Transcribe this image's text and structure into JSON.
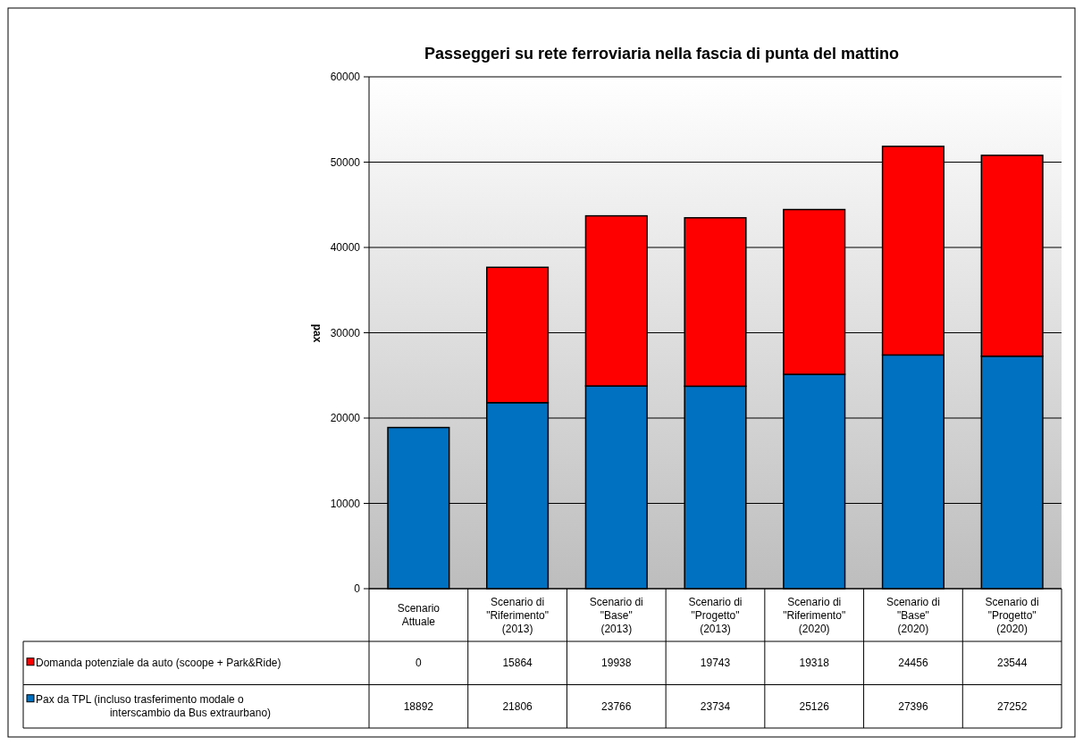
{
  "chart_data": {
    "type": "bar",
    "title": "Passeggeri su rete ferroviaria nella fascia di punta del mattino",
    "ylabel": "pax",
    "categories": [
      "Scenario\nAttuale",
      "Scenario di\n\"Riferimento\"\n(2013)",
      "Scenario di\n\"Base\"\n(2013)",
      "Scenario di\n\"Progetto\"\n(2013)",
      "Scenario di\n\"Riferimento\"\n(2020)",
      "Scenario di\n\"Base\"\n(2020)",
      "Scenario di\n\"Progetto\"\n(2020)"
    ],
    "series": [
      {
        "name": "Pax da TPL (incluso trasferimento modale o interscambio da Bus extraurbano)",
        "color": "#0070c0",
        "values": [
          18892,
          21806,
          23766,
          23734,
          25126,
          27396,
          27252
        ]
      },
      {
        "name": "Domanda potenziale da auto (scoope + Park&Ride)",
        "color": "#ff0000",
        "values": [
          0,
          15864,
          19938,
          19743,
          19318,
          24456,
          23544
        ]
      }
    ],
    "stacked": true,
    "ylim": [
      0,
      60000
    ],
    "yticks": [
      0,
      10000,
      20000,
      30000,
      40000,
      50000,
      60000
    ],
    "grid": "y",
    "legend": "bottom",
    "data_labels": true
  }
}
